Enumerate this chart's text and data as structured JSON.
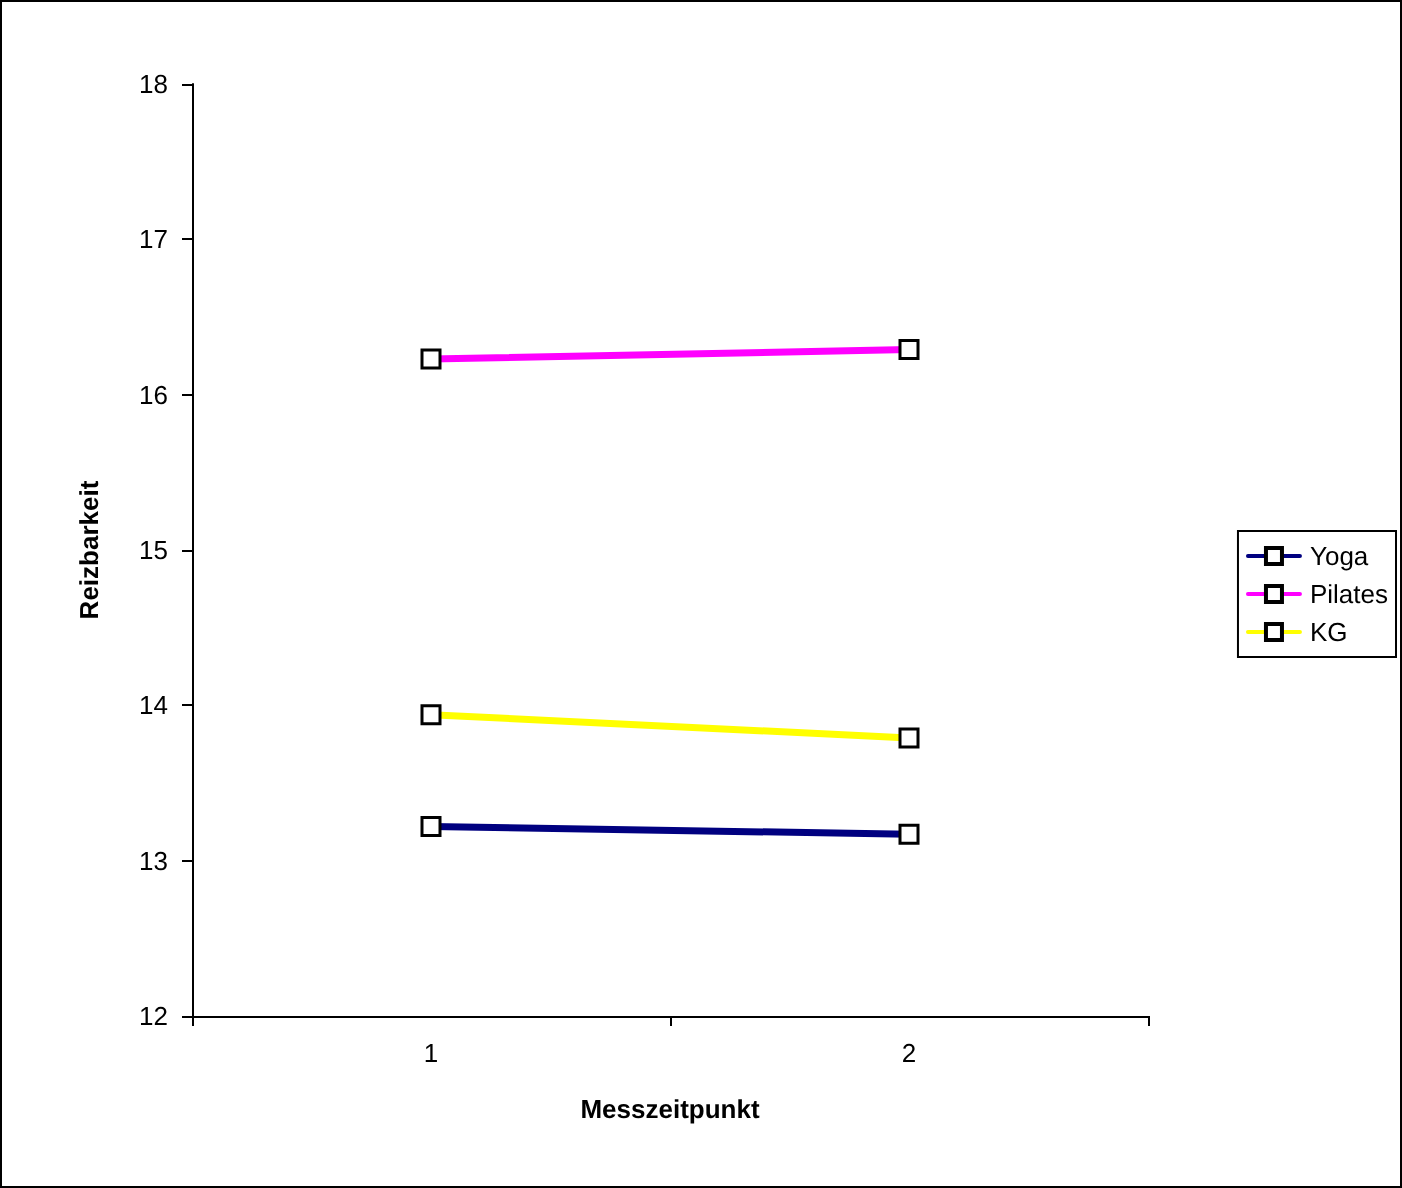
{
  "chart_data": {
    "type": "line",
    "xlabel": "Messzeitpunkt",
    "ylabel": "Reizbarkeit",
    "categories": [
      "1",
      "2"
    ],
    "series": [
      {
        "name": "Yoga",
        "color": "#000080",
        "values": [
          13.22,
          13.17
        ]
      },
      {
        "name": "Pilates",
        "color": "#ff00ff",
        "values": [
          16.23,
          16.29
        ]
      },
      {
        "name": "KG",
        "color": "#ffff00",
        "values": [
          13.94,
          13.79
        ]
      }
    ],
    "ylim": [
      12,
      18
    ],
    "yticks": [
      12,
      13,
      14,
      15,
      16,
      17,
      18
    ],
    "grid": false,
    "legend": "right",
    "marker": "square",
    "line_style": "solid"
  }
}
